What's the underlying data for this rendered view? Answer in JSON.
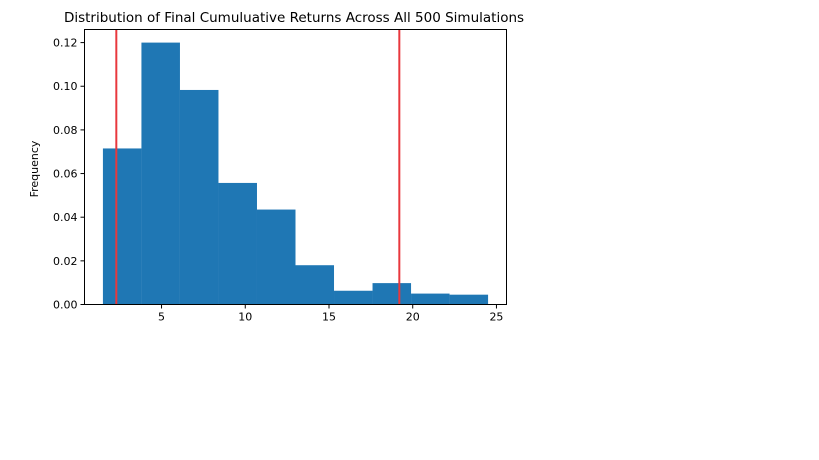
{
  "chart_data": {
    "type": "bar",
    "title": "Distribution of Final Cumuluative Returns Across All 500 Simulations",
    "xlabel": "",
    "ylabel": "Frequency",
    "xlim": [
      0.4,
      25.6
    ],
    "ylim": [
      0,
      0.126
    ],
    "xticks": [
      5,
      10,
      15,
      20,
      25
    ],
    "yticks": [
      0.0,
      0.02,
      0.04,
      0.06,
      0.08,
      0.1,
      0.12
    ],
    "ytick_labels": [
      "0.00",
      "0.02",
      "0.04",
      "0.06",
      "0.08",
      "0.10",
      "0.12"
    ],
    "bins": [
      {
        "x0": 1.5,
        "x1": 3.8,
        "value": 0.0715
      },
      {
        "x0": 3.8,
        "x1": 6.1,
        "value": 0.12
      },
      {
        "x0": 6.1,
        "x1": 8.4,
        "value": 0.0983
      },
      {
        "x0": 8.4,
        "x1": 10.7,
        "value": 0.0557
      },
      {
        "x0": 10.7,
        "x1": 13.0,
        "value": 0.0435
      },
      {
        "x0": 13.0,
        "x1": 15.3,
        "value": 0.018
      },
      {
        "x0": 15.3,
        "x1": 17.6,
        "value": 0.0063
      },
      {
        "x0": 17.6,
        "x1": 19.9,
        "value": 0.0098
      },
      {
        "x0": 19.9,
        "x1": 22.2,
        "value": 0.005
      },
      {
        "x0": 22.2,
        "x1": 24.5,
        "value": 0.0045
      }
    ],
    "vlines": [
      2.3,
      19.2
    ],
    "colors": {
      "bar": "#1f77b4",
      "vline": "#e8383d",
      "axis": "#000000"
    },
    "grid": false
  }
}
